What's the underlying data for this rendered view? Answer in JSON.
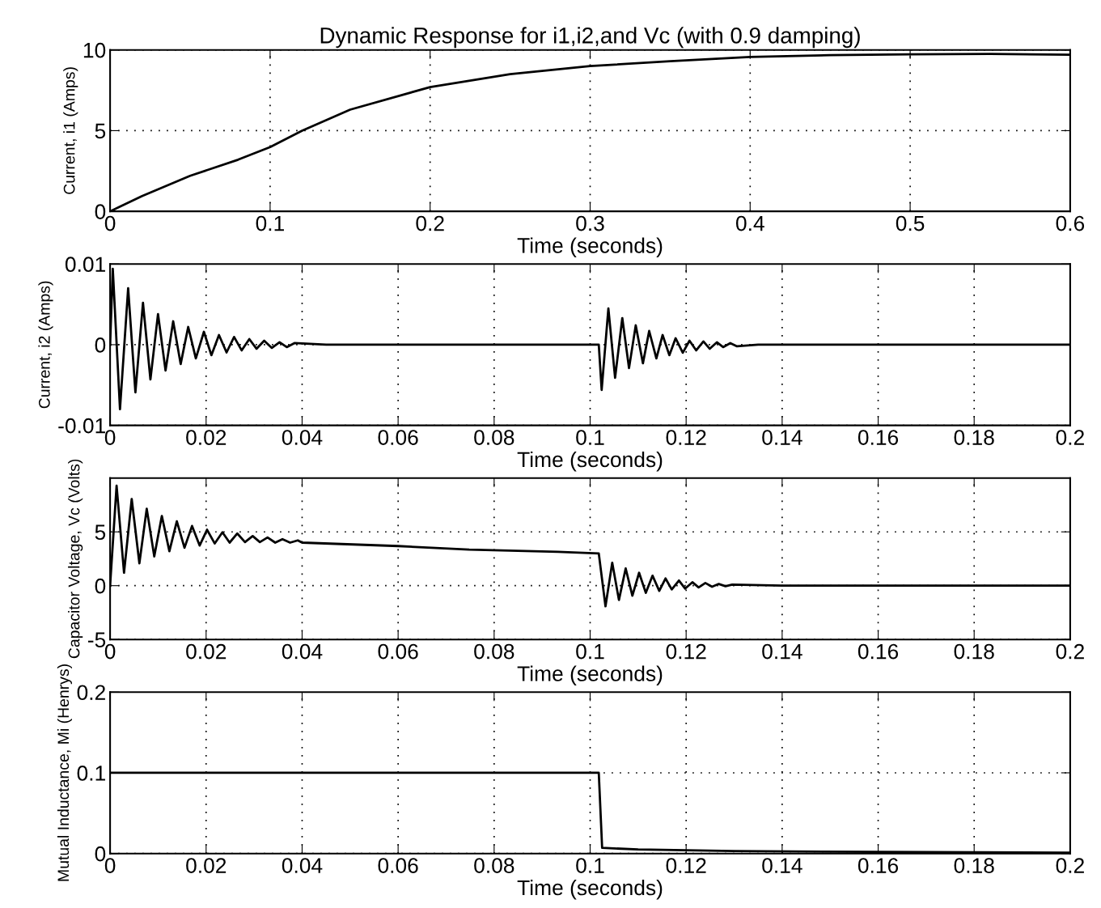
{
  "chart_data": [
    {
      "type": "line",
      "title": "Dynamic Response for i1,i2,and Vc (with 0.9 damping)",
      "xlabel": "Time (seconds)",
      "ylabel": "Current, i1 (Amps)",
      "xlim": [
        0,
        0.6
      ],
      "xticks": [
        0,
        0.1,
        0.2,
        0.3,
        0.4,
        0.5,
        0.6
      ],
      "ylim": [
        0,
        10
      ],
      "yticks": [
        0,
        5,
        10
      ],
      "grid": true,
      "line_style": "solid",
      "series": [
        {
          "color": "#000000",
          "x": [
            0,
            0.02,
            0.05,
            0.08,
            0.1,
            0.12,
            0.15,
            0.2,
            0.25,
            0.3,
            0.35,
            0.4,
            0.45,
            0.5,
            0.55,
            0.6
          ],
          "values": [
            0,
            0.95,
            2.2,
            3.2,
            3.98,
            5.0,
            6.3,
            7.7,
            8.5,
            9.0,
            9.3,
            9.57,
            9.68,
            9.73,
            9.75,
            9.7
          ]
        }
      ]
    },
    {
      "type": "line",
      "xlabel": "Time (seconds)",
      "ylabel": "Current, i2 (Amps)",
      "xlim": [
        0,
        0.2
      ],
      "xticks": [
        0,
        0.02,
        0.04,
        0.06,
        0.08,
        0.1,
        0.12,
        0.14,
        0.16,
        0.18,
        0.2
      ],
      "ylim": [
        -0.01,
        0.01
      ],
      "yticks": [
        -0.01,
        0,
        0.01
      ],
      "grid": true,
      "line_style": "solid",
      "series": [
        {
          "color": "#000000",
          "x": [
            0,
            0.00056,
            0.00206,
            0.00376,
            0.00527,
            0.00685,
            0.0084,
            0.00998,
            0.01155,
            0.01314,
            0.0147,
            0.01627,
            0.01786,
            0.01954,
            0.0211,
            0.02268,
            0.02426,
            0.02583,
            0.0274,
            0.029,
            0.0305,
            0.0321,
            0.0337,
            0.0353,
            0.0368,
            0.0384,
            0.045,
            0.1018,
            0.1024,
            0.1038,
            0.1052,
            0.1067,
            0.1081,
            0.1095,
            0.111,
            0.1123,
            0.1138,
            0.1151,
            0.1165,
            0.1178,
            0.1193,
            0.1207,
            0.1221,
            0.1236,
            0.1249,
            0.1264,
            0.1277,
            0.1292,
            0.1306,
            0.135,
            0.2
          ],
          "values": [
            0,
            0.0094,
            -0.008,
            0.007,
            -0.0059,
            0.0052,
            -0.0043,
            0.0038,
            -0.0032,
            0.0029,
            -0.0024,
            0.0022,
            -0.0017,
            0.0016,
            -0.0013,
            0.0012,
            -0.00096,
            0.00096,
            -0.0007,
            0.0007,
            -0.0005,
            0.0005,
            -0.0004,
            0.0003,
            -0.0003,
            0.0002,
            0,
            0,
            -0.0056,
            0.0045,
            -0.0041,
            0.0033,
            -0.0029,
            0.0024,
            -0.0023,
            0.0017,
            -0.0017,
            0.0012,
            -0.0013,
            0.0008,
            -0.001,
            0.0005,
            -0.0007,
            0.0004,
            -0.0005,
            0.0003,
            -0.0003,
            0.0002,
            -0.0002,
            0,
            0
          ]
        }
      ]
    },
    {
      "type": "line",
      "xlabel": "Time (seconds)",
      "ylabel": "Capacitor Voltage, Vc (Volts)",
      "xlim": [
        0,
        0.2
      ],
      "xticks": [
        0,
        0.02,
        0.04,
        0.06,
        0.08,
        0.1,
        0.12,
        0.14,
        0.16,
        0.18,
        0.2
      ],
      "ylim": [
        -5,
        10
      ],
      "yticks": [
        -5,
        0,
        5
      ],
      "grid": true,
      "line_style": "solid",
      "series": [
        {
          "color": "#000000",
          "x": [
            0,
            0.00135,
            0.0029,
            0.0045,
            0.0061,
            0.00763,
            0.0092,
            0.01078,
            0.01235,
            0.0139,
            0.0155,
            0.01707,
            0.01865,
            0.0202,
            0.0218,
            0.0234,
            0.0249,
            0.0265,
            0.0281,
            0.0297,
            0.0312,
            0.0328,
            0.0344,
            0.0359,
            0.0375,
            0.0391,
            0.04,
            0.06,
            0.0748,
            0.0933,
            0.1018,
            0.1032,
            0.1046,
            0.106,
            0.1074,
            0.1088,
            0.1102,
            0.1116,
            0.113,
            0.1144,
            0.1157,
            0.117,
            0.1185,
            0.1198,
            0.1213,
            0.1226,
            0.124,
            0.1254,
            0.1268,
            0.1282,
            0.1296,
            0.14,
            0.2
          ],
          "values": [
            0,
            9.3,
            1.2,
            8.06,
            2.08,
            7.15,
            2.72,
            6.48,
            3.2,
            5.98,
            3.52,
            5.55,
            3.73,
            5.2,
            3.92,
            4.96,
            4.0,
            4.85,
            4.05,
            4.61,
            4.05,
            4.48,
            4.0,
            4.32,
            4.0,
            4.21,
            4.0,
            3.68,
            3.36,
            3.15,
            2.99,
            -1.92,
            2.13,
            -1.33,
            1.6,
            -0.93,
            1.2,
            -0.67,
            0.93,
            -0.48,
            0.67,
            -0.35,
            0.48,
            -0.27,
            0.32,
            -0.16,
            0.25,
            -0.1,
            0.16,
            -0.05,
            0.1,
            0,
            0
          ]
        }
      ]
    },
    {
      "type": "line",
      "xlabel": "Time (seconds)",
      "ylabel": "Mutual Inductance, Mi (Henrys)",
      "xlim": [
        0,
        0.2
      ],
      "xticks": [
        0,
        0.02,
        0.04,
        0.06,
        0.08,
        0.1,
        0.12,
        0.14,
        0.16,
        0.18,
        0.2
      ],
      "ylim": [
        0,
        0.2
      ],
      "yticks": [
        0,
        0.1,
        0.2
      ],
      "grid": true,
      "line_style": "solid",
      "series": [
        {
          "color": "#000000",
          "x": [
            0,
            0.1018,
            0.1025,
            0.11,
            0.13,
            0.16,
            0.2
          ],
          "values": [
            0.1,
            0.1,
            0.007,
            0.005,
            0.003,
            0.002,
            0.001
          ]
        }
      ]
    }
  ]
}
